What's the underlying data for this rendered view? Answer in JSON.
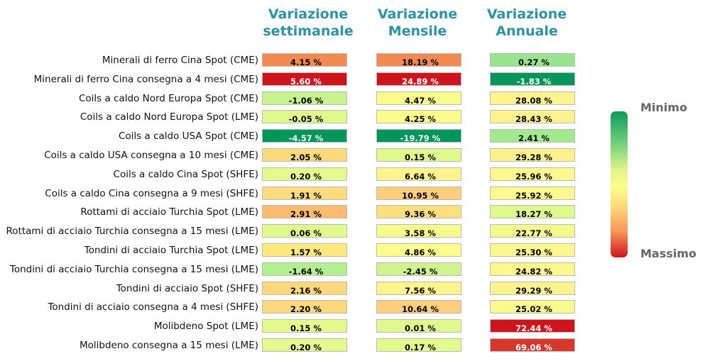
{
  "chart_data": {
    "type": "heatmap",
    "columns": [
      {
        "key": "weekly",
        "title_line1": "Variazione",
        "title_line2": "settimanale"
      },
      {
        "key": "monthly",
        "title_line1": "Variazione",
        "title_line2": "Mensile"
      },
      {
        "key": "annual",
        "title_line1": "Variazione",
        "title_line2": "Annuale"
      }
    ],
    "rows": [
      {
        "label": "Minerali di ferro Cina Spot (CME)",
        "values": [
          4.15,
          18.19,
          0.27
        ],
        "text": [
          "4.15 %",
          "18.19 %",
          "0.27 %"
        ]
      },
      {
        "label": "Minerali di ferro Cina consegna a 4 mesi (CME)",
        "values": [
          5.6,
          24.89,
          -1.83
        ],
        "text": [
          "5.60 %",
          "24.89 %",
          "-1.83 %"
        ]
      },
      {
        "label": "Coils a caldo Nord Europa Spot (CME)",
        "values": [
          -1.06,
          4.47,
          28.08
        ],
        "text": [
          "-1.06 %",
          "4.47 %",
          "28.08 %"
        ]
      },
      {
        "label": "Coils a caldo Nord Europa Spot (LME)",
        "values": [
          -0.05,
          4.25,
          28.43
        ],
        "text": [
          "-0.05 %",
          "4.25 %",
          "28.43 %"
        ]
      },
      {
        "label": "Coils a caldo USA Spot (CME)",
        "values": [
          -4.57,
          -19.79,
          2.41
        ],
        "text": [
          "-4.57 %",
          "-19.79 %",
          "2.41 %"
        ]
      },
      {
        "label": "Coils a caldo USA consegna a 10 mesi (CME)",
        "values": [
          2.05,
          0.15,
          29.28
        ],
        "text": [
          "2.05 %",
          "0.15 %",
          "29.28 %"
        ]
      },
      {
        "label": "Coils a caldo Cina Spot (SHFE)",
        "values": [
          0.2,
          6.64,
          25.96
        ],
        "text": [
          "0.20 %",
          "6.64 %",
          "25.96 %"
        ]
      },
      {
        "label": "Coils a caldo Cina consegna a 9 mesi (SHFE)",
        "values": [
          1.91,
          10.95,
          25.92
        ],
        "text": [
          "1.91 %",
          "10.95 %",
          "25.92 %"
        ]
      },
      {
        "label": "Rottami di acciaio Turchia Spot (LME)",
        "values": [
          2.91,
          9.36,
          18.27
        ],
        "text": [
          "2.91 %",
          "9.36 %",
          "18.27 %"
        ]
      },
      {
        "label": "Rottami di acciaio Turchia consegna a 15 mesi (LME)",
        "values": [
          0.06,
          3.58,
          22.77
        ],
        "text": [
          "0.06 %",
          "3.58 %",
          "22.77 %"
        ]
      },
      {
        "label": "Tondini di acciaio Turchia Spot (LME)",
        "values": [
          1.57,
          4.86,
          25.3
        ],
        "text": [
          "1.57 %",
          "4.86 %",
          "25.30 %"
        ]
      },
      {
        "label": "Tondini di acciaio Turchia consegna a 15 mesi (LME)",
        "values": [
          -1.64,
          -2.45,
          24.82
        ],
        "text": [
          "-1.64 %",
          "-2.45 %",
          "24.82 %"
        ]
      },
      {
        "label": "Tondini di acciaio Spot (SHFE)",
        "values": [
          2.16,
          7.56,
          29.29
        ],
        "text": [
          "2.16 %",
          "7.56 %",
          "29.29 %"
        ]
      },
      {
        "label": "Tondini di acciaio consegna a 4 mesi (SHFE)",
        "values": [
          2.2,
          10.64,
          25.02
        ],
        "text": [
          "2.20 %",
          "10.64 %",
          "25.02 %"
        ]
      },
      {
        "label": "Molibdeno Spot (LME)",
        "values": [
          0.15,
          0.01,
          72.44
        ],
        "text": [
          "0.15 %",
          "0.01 %",
          "72.44 %"
        ]
      },
      {
        "label": "Molibdeno consegna a 15 mesi (LME)",
        "values": [
          0.2,
          0.17,
          69.06
        ],
        "text": [
          "0.20 %",
          "0.17 %",
          "69.06 %"
        ]
      }
    ],
    "legend": {
      "min_label": "Minimo",
      "max_label": "Massimo",
      "placement": "right"
    },
    "colorscale": [
      "#0b9a59",
      "#74d17c",
      "#dff58a",
      "#fdfd8c",
      "#fdd57c",
      "#f79858",
      "#d0141e"
    ],
    "cell_colors": [
      [
        "#f28a52",
        "#f28a52",
        "#97e68f"
      ],
      [
        "#d0141e",
        "#d0141e",
        "#009659"
      ],
      [
        "#c7f48c",
        "#fdfd8c",
        "#fdf48c"
      ],
      [
        "#e1f98c",
        "#fdfd8c",
        "#fdf28c"
      ],
      [
        "#009659",
        "#009659",
        "#a2ea90"
      ],
      [
        "#fed97c",
        "#e1f98c",
        "#fdf18c"
      ],
      [
        "#e5fa8c",
        "#fdf48c",
        "#fdf98c"
      ],
      [
        "#fedb7c",
        "#fdce7c",
        "#fdf98c"
      ],
      [
        "#fdbb6f",
        "#fde07c",
        "#def98c"
      ],
      [
        "#e2f98c",
        "#f6fc8c",
        "#f1fb8c"
      ],
      [
        "#fde97c",
        "#fdfd8c",
        "#fdf88c"
      ],
      [
        "#b2ef8e",
        "#cef58d",
        "#fdf88c"
      ],
      [
        "#fed97c",
        "#fdf48c",
        "#fdf38c"
      ],
      [
        "#fed87c",
        "#fdce7c",
        "#f8fb8c"
      ],
      [
        "#e5fa8c",
        "#e1f98c",
        "#d0141e"
      ],
      [
        "#e5fa8c",
        "#e3fa8c",
        "#d8362b"
      ]
    ]
  }
}
